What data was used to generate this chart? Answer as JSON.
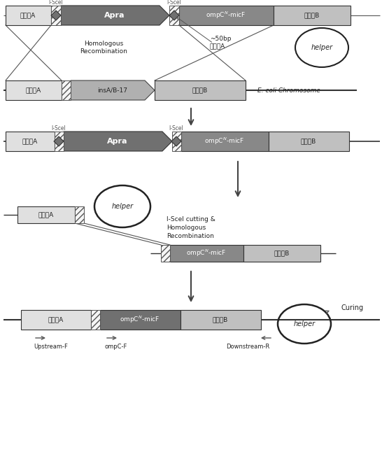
{
  "figsize": [
    5.46,
    6.56
  ],
  "dpi": 100,
  "bg": "#ffffff",
  "c_light": "#e0e0e0",
  "c_mid": "#b0b0b0",
  "c_dark": "#707070",
  "c_ompc": "#888888",
  "c_homB": "#c0c0c0",
  "c_line": "#333333",
  "c_arrow": "#555555",
  "c_hatch_bg": "#f0f0f0",
  "txt_A": "同源蟂A",
  "txt_B": "同源蟂B",
  "txt_Apra": "Apra",
  "txt_ins": "insA/B-17",
  "txt_ompc": "ompC$^N$-micF",
  "txt_helper": "helper",
  "txt_HR": "Homologous\nRecombination",
  "txt_50bp": "~50bp\n同源蟂A",
  "txt_iscel1": "I-SceI cutting &\nHomologous\nRecombination",
  "txt_ecoli": "E. coli Chromosome",
  "txt_upF": "Upstream-F",
  "txt_ompcF": "ompC-F",
  "txt_downR": "Downstream-R",
  "txt_curing": "Curing"
}
